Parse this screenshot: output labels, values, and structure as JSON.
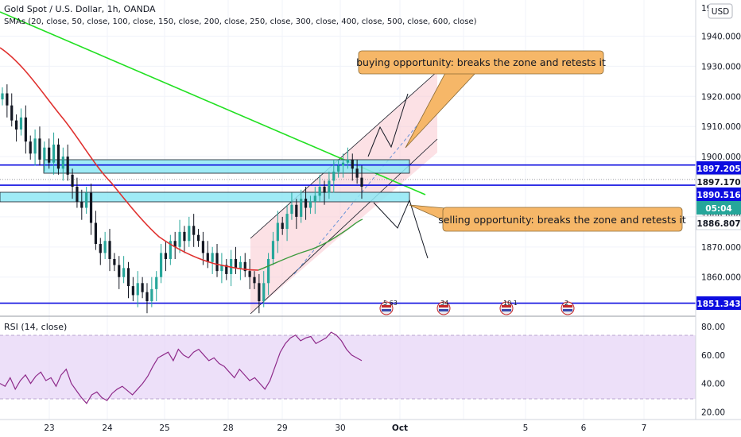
{
  "header": {
    "title": "Gold Spot / U.S. Dollar, 1h, OANDA",
    "sma_label": "SMAs (20, close, 50, close, 100, close, 150, close, 200, close, 250, close, 300, close, 400, close, 500, close, 600, close)",
    "currency_button": "USD"
  },
  "chart_data": {
    "type": "candlestick",
    "instrument": "Gold Spot / U.S. Dollar",
    "interval": "1h",
    "source": "OANDA",
    "price_axis": {
      "ylim": [
        1847,
        1952
      ],
      "ticks": [
        "1940.000",
        "1930.000",
        "1920.000",
        "1910.000",
        "1900.000",
        "1890.000",
        "1880.000",
        "1870.000",
        "1860.000"
      ],
      "tick_values": [
        1940,
        1930,
        1920,
        1910,
        1900,
        1890,
        1880,
        1870,
        1860
      ],
      "top_partial_label": "19"
    },
    "time_axis": {
      "labels": [
        "23",
        "24",
        "25",
        "28",
        "29",
        "30",
        "Oct",
        "5",
        "6",
        "7"
      ]
    },
    "price_tags": [
      {
        "value": "1897.205",
        "color": "#0d0de0",
        "text_color": "#ffffff"
      },
      {
        "value": "1897.170",
        "color": "#ffffff",
        "text_color": "#131722"
      },
      {
        "value": "1890.516",
        "color": "#0d0de0",
        "text_color": "#ffffff"
      },
      {
        "value": "05:04",
        "color": "#26a69a",
        "text_color": "#ffffff"
      },
      {
        "value": "1886.807",
        "color": "#ffffff",
        "text_color": "#131722"
      },
      {
        "value": "1851.343",
        "color": "#0d0de0",
        "text_color": "#ffffff"
      }
    ],
    "horizontal_levels": [
      1897.205,
      1890.516,
      1851.343
    ],
    "zones": [
      {
        "top": 1899.5,
        "bottom": 1894.5,
        "color": "#7fe6f5"
      },
      {
        "top": 1891.8,
        "bottom": 1889.0,
        "color": "#7fe6f5"
      }
    ],
    "close_series": [
      1921,
      1917,
      1912,
      1909,
      1913,
      1905,
      1901,
      1906,
      1899,
      1903,
      1898,
      1904,
      1896,
      1900,
      1894,
      1890,
      1885,
      1883,
      1888,
      1878,
      1871,
      1868,
      1872,
      1866,
      1864,
      1860,
      1863,
      1857,
      1854,
      1858,
      1855,
      1852,
      1856,
      1860,
      1868,
      1866,
      1872,
      1870,
      1875,
      1872,
      1877,
      1874,
      1872,
      1868,
      1865,
      1868,
      1862,
      1864,
      1861,
      1866,
      1863,
      1865,
      1862,
      1860,
      1858,
      1852,
      1858,
      1866,
      1872,
      1878,
      1876,
      1881,
      1884,
      1880,
      1886,
      1883,
      1885,
      1887,
      1890,
      1888,
      1892,
      1895,
      1897,
      1898,
      1899,
      1896,
      1893,
      1890
    ],
    "rsi": {
      "label": "RSI (14, close)",
      "ticks": [
        "80.00",
        "60.00",
        "40.00",
        "20.00"
      ],
      "tick_values": [
        80,
        60,
        40,
        20
      ],
      "levels": [
        70,
        30
      ],
      "values": [
        40,
        38,
        44,
        36,
        42,
        46,
        40,
        45,
        48,
        42,
        44,
        38,
        46,
        50,
        40,
        35,
        30,
        26,
        32,
        34,
        30,
        28,
        33,
        36,
        38,
        35,
        32,
        36,
        40,
        45,
        52,
        58,
        60,
        62,
        56,
        64,
        60,
        58,
        62,
        64,
        60,
        56,
        58,
        54,
        52,
        48,
        44,
        50,
        46,
        42,
        44,
        40,
        36,
        42,
        52,
        62,
        68,
        72,
        74,
        70,
        72,
        73,
        68,
        70,
        72,
        76,
        74,
        70,
        64,
        60,
        58,
        56
      ]
    },
    "annotations": [
      {
        "text": "buying opportunity:  breaks the zone and retests it"
      },
      {
        "text": "selling opportunity: breaks the zone and retests it"
      }
    ],
    "event_flags": [
      "5",
      "63",
      "34",
      "10",
      "1",
      "2"
    ]
  }
}
